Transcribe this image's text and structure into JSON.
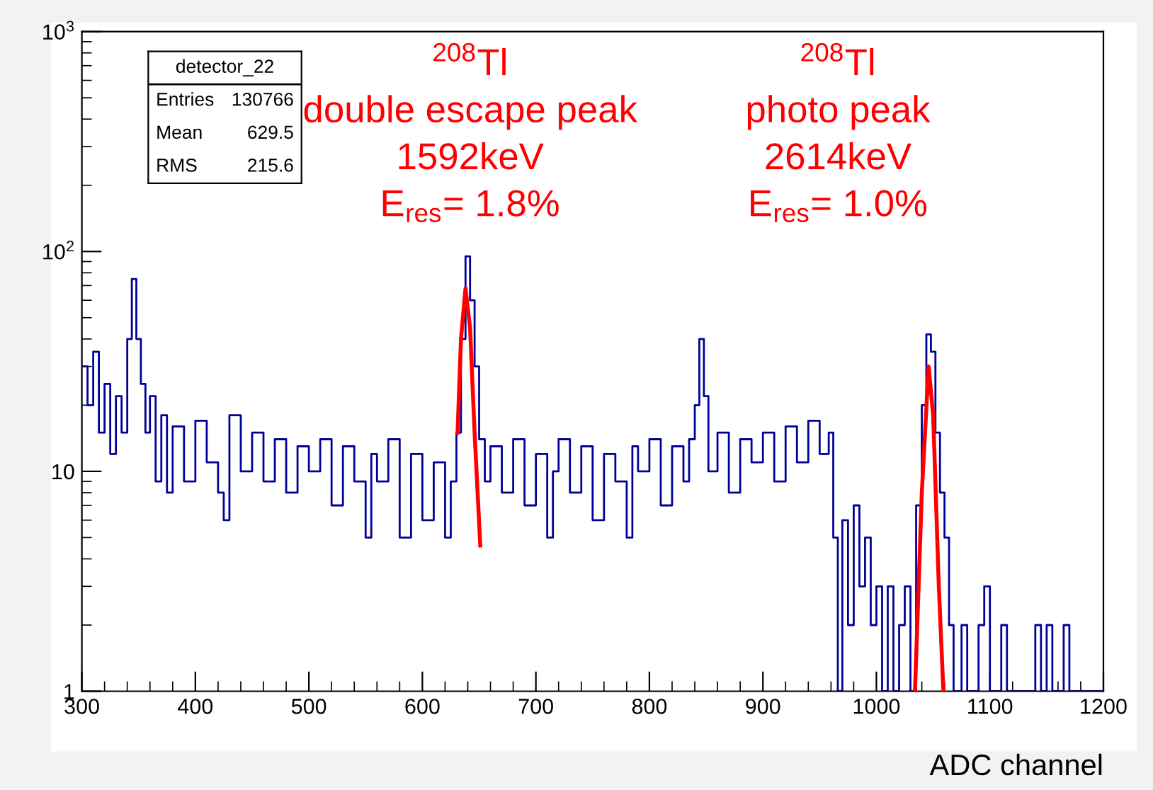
{
  "chart_data": {
    "type": "step",
    "xlabel": "ADC channel",
    "log": "y",
    "grid": false,
    "legend": false,
    "xlim": [
      300,
      1200
    ],
    "xticks": [
      300,
      400,
      500,
      600,
      700,
      800,
      900,
      1000,
      1100,
      1200
    ],
    "ylim": [
      1,
      1000
    ],
    "yticks": [
      1,
      10,
      {
        "value": 100,
        "label": "10$^{2}$"
      },
      {
        "value": 1000,
        "label": "10$^{3}$"
      }
    ],
    "annotations": [
      "detector_22",
      "Entries",
      "130766",
      "Mean",
      "629.5",
      "RMS",
      "215.6",
      "$^{208}$Tl\ndouble escape peak\n1592keV\nE$_{res}$= 1.8%",
      "$^{208}$Tl\nphoto peak\n2614keV\nE$_{res}$= 1.0%"
    ],
    "series": [
      {
        "color": "#000099",
        "x": [
          300,
          305,
          310,
          315,
          320,
          325,
          330,
          335,
          340,
          344,
          348,
          352,
          356,
          360,
          365,
          370,
          375,
          380,
          390,
          400,
          410,
          420,
          425,
          430,
          440,
          450,
          460,
          470,
          480,
          490,
          500,
          510,
          520,
          530,
          540,
          550,
          555,
          560,
          570,
          580,
          590,
          600,
          610,
          620,
          625,
          630,
          634,
          638,
          642,
          646,
          650,
          655,
          660,
          670,
          680,
          690,
          700,
          710,
          715,
          720,
          730,
          740,
          750,
          760,
          770,
          780,
          785,
          790,
          800,
          810,
          820,
          830,
          835,
          840,
          844,
          848,
          852,
          860,
          870,
          880,
          890,
          900,
          910,
          920,
          930,
          940,
          950,
          958,
          962,
          966,
          970,
          975,
          980,
          985,
          990,
          995,
          1000,
          1005,
          1010,
          1015,
          1020,
          1025,
          1030,
          1035,
          1040,
          1044,
          1048,
          1052,
          1056,
          1060,
          1064,
          1068,
          1075,
          1080,
          1090,
          1095,
          1100,
          1110,
          1115,
          1130,
          1140,
          1145,
          1150,
          1155,
          1165,
          1170,
          1200
        ],
        "values": [
          30,
          20,
          35,
          15,
          25,
          12,
          22,
          15,
          40,
          75,
          40,
          25,
          15,
          22,
          9,
          18,
          8,
          16,
          9,
          17,
          11,
          8,
          6,
          18,
          10,
          15,
          9,
          14,
          8,
          13,
          10,
          14,
          7,
          13,
          9,
          5,
          12,
          9,
          14,
          5,
          12,
          6,
          11,
          5,
          9,
          15,
          40,
          95,
          60,
          30,
          14,
          9,
          13,
          8,
          14,
          7,
          12,
          5,
          10,
          14,
          8,
          13,
          6,
          12,
          9,
          5,
          13,
          10,
          14,
          7,
          13,
          9,
          14,
          20,
          40,
          22,
          10,
          15,
          8,
          14,
          11,
          15,
          9,
          16,
          11,
          17,
          12,
          15,
          5,
          1,
          6,
          2,
          7,
          3,
          5,
          2,
          3,
          1,
          3,
          1,
          2,
          3,
          1,
          7,
          20,
          42,
          35,
          15,
          8,
          5,
          2,
          1,
          2,
          1,
          2,
          3,
          1,
          2,
          1,
          1,
          2,
          1,
          2,
          1,
          2,
          1,
          1
        ]
      },
      {
        "type": "line",
        "color": "#ff0000",
        "x": [
          631,
          634,
          638,
          642,
          646,
          651
        ],
        "values": [
          15,
          40,
          68,
          45,
          15,
          4.6
        ]
      },
      {
        "type": "line",
        "color": "#ff0000",
        "x": [
          1034,
          1040,
          1046,
          1050,
          1055,
          1059
        ],
        "values": [
          1,
          8,
          30,
          18,
          3,
          1
        ]
      }
    ]
  }
}
